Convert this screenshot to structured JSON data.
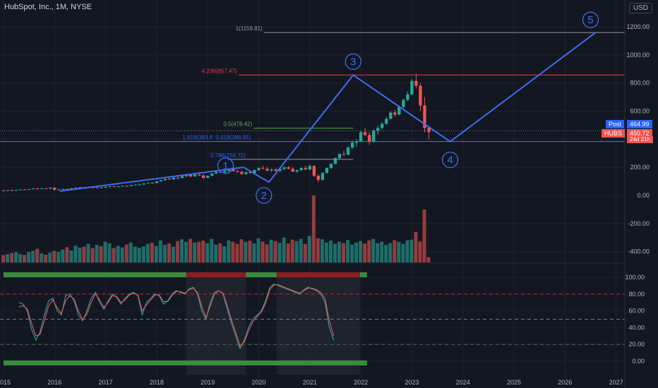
{
  "header": {
    "symbol_title": "HubSpot, Inc., 1M, NYSE",
    "currency_button": "USD"
  },
  "price_tags": {
    "post_label": "Post",
    "post_value": "464.99",
    "symbol_label": "HUBS",
    "last_value": "450.72",
    "countdown": "24d 21h"
  },
  "colors": {
    "background": "#131722",
    "up": "#26a69a",
    "down": "#ef5350",
    "wave": "#3d6cf0",
    "post_tag": "#2962ff",
    "last_tag": "#ef5350"
  },
  "annotations": {
    "fib_1": "1(1159.81)",
    "fib_4236": "4.236(857.47)",
    "fib_05": "0.5(478.42)",
    "fib_1618": "1.618(383.8",
    "fib_0618": "0.618(386.95)",
    "fib_0786": "0.786(256.72)",
    "waves": [
      "1",
      "2",
      "3",
      "4",
      "5"
    ]
  },
  "chart_data": [
    {
      "type": "candlestick",
      "title": "HubSpot, Inc., 1M, NYSE",
      "y_ticks": [
        "1200.00",
        "1000.00",
        "800.00",
        "600.00",
        "400.00",
        "200.00",
        "0.00",
        "-200.00",
        "-400.00"
      ],
      "ylim": [
        -440,
        1300
      ],
      "x_ticks": [
        "2015",
        "2016",
        "2017",
        "2018",
        "2019",
        "2020",
        "2021",
        "2022",
        "2023",
        "2024",
        "2025",
        "2026",
        "2027"
      ],
      "xlim": [
        2015.0,
        2027.05
      ],
      "series": [
        {
          "kind": "ohlc_monthly",
          "start": 2015.0,
          "step": 0.0833333,
          "ohlc": [
            [
              35,
              39,
              31,
              33
            ],
            [
              33,
              38,
              30,
              37
            ],
            [
              37,
              42,
              34,
              36
            ],
            [
              36,
              40,
              33,
              39
            ],
            [
              39,
              44,
              36,
              42
            ],
            [
              42,
              46,
              39,
              41
            ],
            [
              41,
              47,
              39,
              45
            ],
            [
              45,
              52,
              42,
              50
            ],
            [
              50,
              54,
              44,
              47
            ],
            [
              47,
              53,
              45,
              51
            ],
            [
              51,
              55,
              47,
              49
            ],
            [
              49,
              57,
              46,
              55
            ],
            [
              55,
              57,
              36,
              40
            ],
            [
              40,
              45,
              36,
              43
            ],
            [
              43,
              48,
              41,
              46
            ],
            [
              46,
              50,
              42,
              44
            ],
            [
              44,
              53,
              43,
              51
            ],
            [
              51,
              57,
              48,
              55
            ],
            [
              55,
              60,
              52,
              58
            ],
            [
              58,
              60,
              52,
              54
            ],
            [
              54,
              62,
              53,
              60
            ],
            [
              60,
              63,
              51,
              53
            ],
            [
              53,
              59,
              49,
              57
            ],
            [
              57,
              61,
              53,
              55
            ],
            [
              55,
              64,
              54,
              62
            ],
            [
              62,
              67,
              59,
              64
            ],
            [
              64,
              67,
              58,
              60
            ],
            [
              60,
              66,
              59,
              65
            ],
            [
              65,
              70,
              62,
              68
            ],
            [
              68,
              72,
              63,
              66
            ],
            [
              66,
              75,
              65,
              73
            ],
            [
              73,
              80,
              70,
              77
            ],
            [
              77,
              83,
              74,
              78
            ],
            [
              78,
              87,
              76,
              85
            ],
            [
              85,
              93,
              82,
              90
            ],
            [
              90,
              94,
              84,
              88
            ],
            [
              88,
              104,
              87,
              100
            ],
            [
              100,
              110,
              97,
              108
            ],
            [
              108,
              122,
              104,
              118
            ],
            [
              118,
              127,
              110,
              114
            ],
            [
              114,
              130,
              112,
              126
            ],
            [
              126,
              134,
              116,
              125
            ],
            [
              125,
              140,
              120,
              137
            ],
            [
              137,
              150,
              132,
              147
            ],
            [
              147,
              155,
              130,
              135
            ],
            [
              135,
              150,
              132,
              148
            ],
            [
              148,
              160,
              138,
              142
            ],
            [
              142,
              152,
              118,
              125
            ],
            [
              125,
              142,
              122,
              140
            ],
            [
              140,
              160,
              137,
              156
            ],
            [
              156,
              172,
              150,
              168
            ],
            [
              168,
              180,
              160,
              165
            ],
            [
              165,
              178,
              158,
              174
            ],
            [
              174,
              190,
              168,
              186
            ],
            [
              186,
              195,
              170,
              172
            ],
            [
              172,
              182,
              162,
              168
            ],
            [
              168,
              176,
              148,
              152
            ],
            [
              152,
              170,
              145,
              165
            ],
            [
              165,
              175,
              155,
              160
            ],
            [
              160,
              185,
              150,
              180
            ],
            [
              180,
              200,
              172,
              195
            ],
            [
              195,
              210,
              185,
              190
            ],
            [
              190,
              205,
              170,
              178
            ],
            [
              178,
              192,
              165,
              185
            ],
            [
              185,
              195,
              170,
              175
            ],
            [
              175,
              190,
              165,
              188
            ],
            [
              188,
              205,
              180,
              200
            ],
            [
              200,
              210,
              185,
              190
            ],
            [
              190,
              200,
              165,
              170
            ],
            [
              170,
              185,
              160,
              180
            ],
            [
              180,
              200,
              175,
              195
            ],
            [
              195,
              210,
              180,
              185
            ],
            [
              185,
              220,
              180,
              210
            ],
            [
              210,
              215,
              130,
              140
            ],
            [
              140,
              150,
              95,
              110
            ],
            [
              110,
              165,
              105,
              160
            ],
            [
              160,
              200,
              155,
              195
            ],
            [
              195,
              230,
              190,
              225
            ],
            [
              225,
              270,
              220,
              265
            ],
            [
              265,
              300,
              260,
              295
            ],
            [
              295,
              320,
              280,
              290
            ],
            [
              290,
              350,
              285,
              340
            ],
            [
              340,
              390,
              330,
              375
            ],
            [
              375,
              400,
              345,
              385
            ],
            [
              385,
              460,
              380,
              450
            ],
            [
              450,
              480,
              420,
              430
            ],
            [
              430,
              450,
              360,
              380
            ],
            [
              380,
              470,
              375,
              460
            ],
            [
              460,
              500,
              430,
              480
            ],
            [
              480,
              520,
              470,
              510
            ],
            [
              510,
              560,
              500,
              545
            ],
            [
              545,
              600,
              540,
              590
            ],
            [
              590,
              610,
              560,
              575
            ],
            [
              575,
              640,
              570,
              630
            ],
            [
              630,
              690,
              620,
              680
            ],
            [
              680,
              740,
              670,
              720
            ],
            [
              720,
              830,
              715,
              815
            ],
            [
              815,
              866,
              760,
              780
            ],
            [
              780,
              800,
              600,
              640
            ],
            [
              640,
              700,
              450,
              480
            ],
            [
              480,
              485,
              400,
              450.72
            ]
          ]
        }
      ],
      "horizontal_lines": [
        {
          "label": "1(1159.81)",
          "value": 1159.81
        },
        {
          "label": "4.236(857.47)",
          "value": 857.47
        },
        {
          "label": "0.5(478.42)",
          "value": 478.42
        },
        {
          "label": "0.618(386.95)",
          "value": 386.95
        },
        {
          "label": "0.786(256.72)",
          "value": 256.72
        },
        {
          "label": "",
          "value": 383.8
        }
      ],
      "elliott_wave": {
        "labels": [
          "1",
          "2",
          "3",
          "4",
          "5"
        ],
        "path": [
          [
            2016.1,
            30
          ],
          [
            2019.7,
            200
          ],
          [
            2020.2,
            95
          ],
          [
            2021.85,
            857
          ],
          [
            2023.75,
            383
          ],
          [
            2026.6,
            1160
          ]
        ]
      },
      "volume_bars": [
        -425,
        -418,
        -410,
        -403,
        -418,
        -423,
        -403,
        -395,
        -380,
        -412,
        -422,
        -407,
        -395,
        -402,
        -385,
        -368,
        -392,
        -358,
        -372,
        -365,
        -345,
        -375,
        -352,
        -362,
        -330,
        -342,
        -375,
        -360,
        -370,
        -350,
        -335,
        -365,
        -372,
        -362,
        -345,
        -337,
        -360,
        -320,
        -352,
        -342,
        -365,
        -325,
        -312,
        -330,
        -310,
        -335,
        -330,
        -322,
        -340,
        -310,
        -350,
        -342,
        -362,
        -320,
        -330,
        -345,
        -312,
        -330,
        -322,
        -342,
        -305,
        -328,
        -348,
        -315,
        -325,
        -338,
        -300,
        -342,
        -315,
        -325,
        -310,
        -345,
        -290,
        0,
        -305,
        -312,
        -335,
        -322,
        -345,
        -330,
        -340,
        -317,
        -350,
        -335,
        -325,
        -343,
        -320,
        -310,
        -340,
        -330,
        -352,
        -340,
        -318,
        -330,
        -345,
        -320,
        -315,
        -260,
        -328,
        -100,
        -440
      ]
    },
    {
      "type": "line",
      "title": "",
      "y_ticks": [
        "100.00",
        "80.00",
        "60.00",
        "40.00",
        "20.00",
        "0.00"
      ],
      "ylim": [
        -5,
        105
      ],
      "reference_lines": [
        80,
        50,
        20
      ],
      "series": [
        {
          "name": "",
          "color": "#26a69a",
          "start": 2015.3,
          "step": 0.0833333,
          "values": [
            70,
            68,
            60,
            38,
            25,
            35,
            55,
            72,
            75,
            60,
            55,
            78,
            80,
            72,
            55,
            48,
            60,
            75,
            82,
            70,
            62,
            72,
            80,
            76,
            68,
            75,
            80,
            82,
            78,
            55,
            70,
            75,
            80,
            78,
            68,
            72,
            80,
            84,
            82,
            80,
            86,
            88,
            80,
            60,
            50,
            70,
            82,
            84,
            80,
            62,
            45,
            30,
            15,
            25,
            40,
            50,
            55,
            60,
            72,
            88,
            92,
            90,
            88,
            86,
            84,
            82,
            80,
            85,
            88,
            86,
            84,
            80,
            70,
            40,
            25
          ]
        },
        {
          "name": "",
          "color": "#ef5350",
          "start": 2015.3,
          "step": 0.0833333,
          "values": [
            65,
            66,
            62,
            45,
            30,
            32,
            48,
            66,
            73,
            64,
            57,
            72,
            78,
            74,
            60,
            50,
            56,
            70,
            80,
            73,
            64,
            70,
            78,
            77,
            70,
            73,
            79,
            81,
            79,
            60,
            67,
            73,
            79,
            79,
            71,
            71,
            78,
            83,
            83,
            81,
            85,
            87,
            82,
            65,
            52,
            66,
            80,
            84,
            81,
            66,
            49,
            34,
            18,
            23,
            36,
            47,
            53,
            58,
            69,
            85,
            91,
            91,
            89,
            87,
            85,
            83,
            81,
            84,
            87,
            87,
            85,
            82,
            74,
            48,
            30
          ]
        }
      ]
    }
  ]
}
